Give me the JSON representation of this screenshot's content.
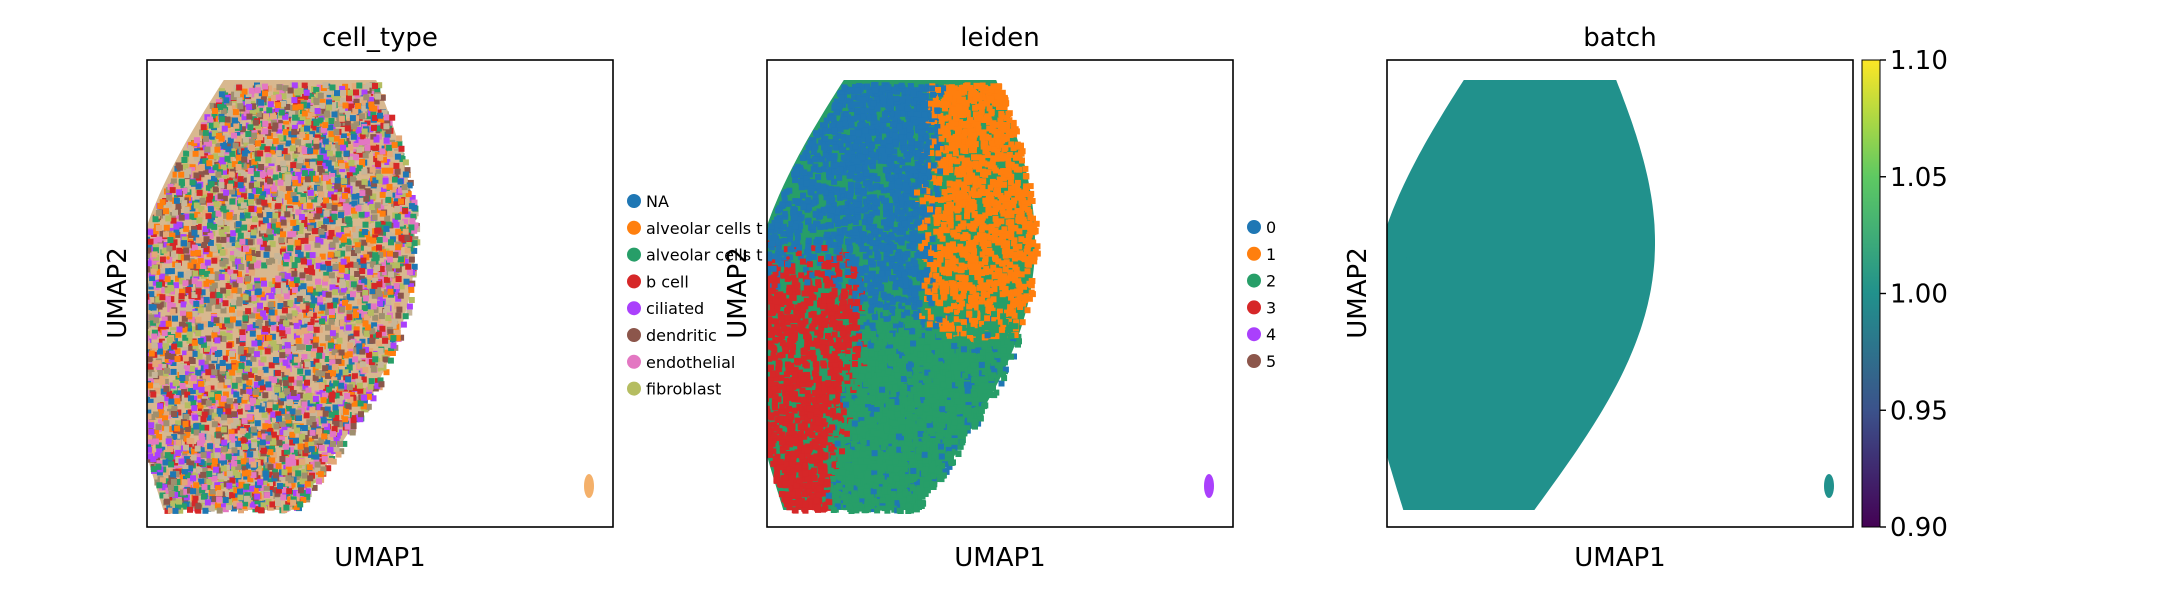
{
  "chart_data": [
    {
      "type": "scatter",
      "title": "cell_type",
      "xlabel": "UMAP1",
      "ylabel": "UMAP2",
      "grid": false,
      "legend_placement": "right",
      "series": [
        {
          "name": "NA",
          "color": "#1f77b4"
        },
        {
          "name": "alveolar cells t",
          "color": "#ff7f0e"
        },
        {
          "name": "alveolar cells t",
          "color": "#279e68"
        },
        {
          "name": "b cell",
          "color": "#d62728"
        },
        {
          "name": "ciliated",
          "color": "#aa40fc"
        },
        {
          "name": "dendritic",
          "color": "#8c564b"
        },
        {
          "name": "endothelial",
          "color": "#e377c2"
        },
        {
          "name": "fibroblast",
          "color": "#b5bd61"
        }
      ]
    },
    {
      "type": "scatter",
      "title": "leiden",
      "xlabel": "UMAP1",
      "ylabel": "UMAP2",
      "grid": false,
      "legend_placement": "right",
      "series": [
        {
          "name": "0",
          "color": "#1f77b4"
        },
        {
          "name": "1",
          "color": "#ff7f0e"
        },
        {
          "name": "2",
          "color": "#279e68"
        },
        {
          "name": "3",
          "color": "#d62728"
        },
        {
          "name": "4",
          "color": "#aa40fc"
        },
        {
          "name": "5",
          "color": "#8c564b"
        }
      ]
    },
    {
      "type": "scatter",
      "title": "batch",
      "xlabel": "UMAP1",
      "ylabel": "UMAP2",
      "grid": false,
      "point_color": "#21918c",
      "colorbar": {
        "range": [
          0.9,
          1.1
        ],
        "ticks": [
          "1.10",
          "1.05",
          "1.00",
          "0.95",
          "0.90"
        ],
        "colormap": [
          "#440154",
          "#3b528b",
          "#21918c",
          "#5ec962",
          "#fde725"
        ]
      }
    }
  ]
}
